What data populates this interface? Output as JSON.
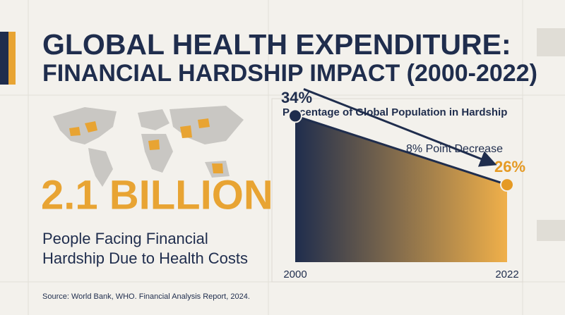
{
  "header": {
    "title_lines": [
      "GLOBAL HEALTH EXPENDITURE:",
      "FINANCIAL HARDSHIP IMPACT (2000-2022)"
    ]
  },
  "stat": {
    "value": "2.1 BILLION",
    "caption_lines": [
      "People Facing Financial",
      "Hardship Due to Health Costs"
    ]
  },
  "source": "Source: World Bank, WHO. Financial Analysis Report, 2024.",
  "chart_data": {
    "type": "area",
    "title": "Percentage of Global Population in Hardship",
    "categories": [
      "2000",
      "2022"
    ],
    "values": [
      34,
      26
    ],
    "value_labels": [
      "34%",
      "26%"
    ],
    "annotation": "8% Point Decrease",
    "ylim": [
      17,
      36
    ],
    "line_color": "#1f2d4d",
    "fill_colors": [
      "#1f2d4d",
      "#f0b04a"
    ],
    "label_colors": [
      "#1f2d4d",
      "#e59a24"
    ]
  }
}
